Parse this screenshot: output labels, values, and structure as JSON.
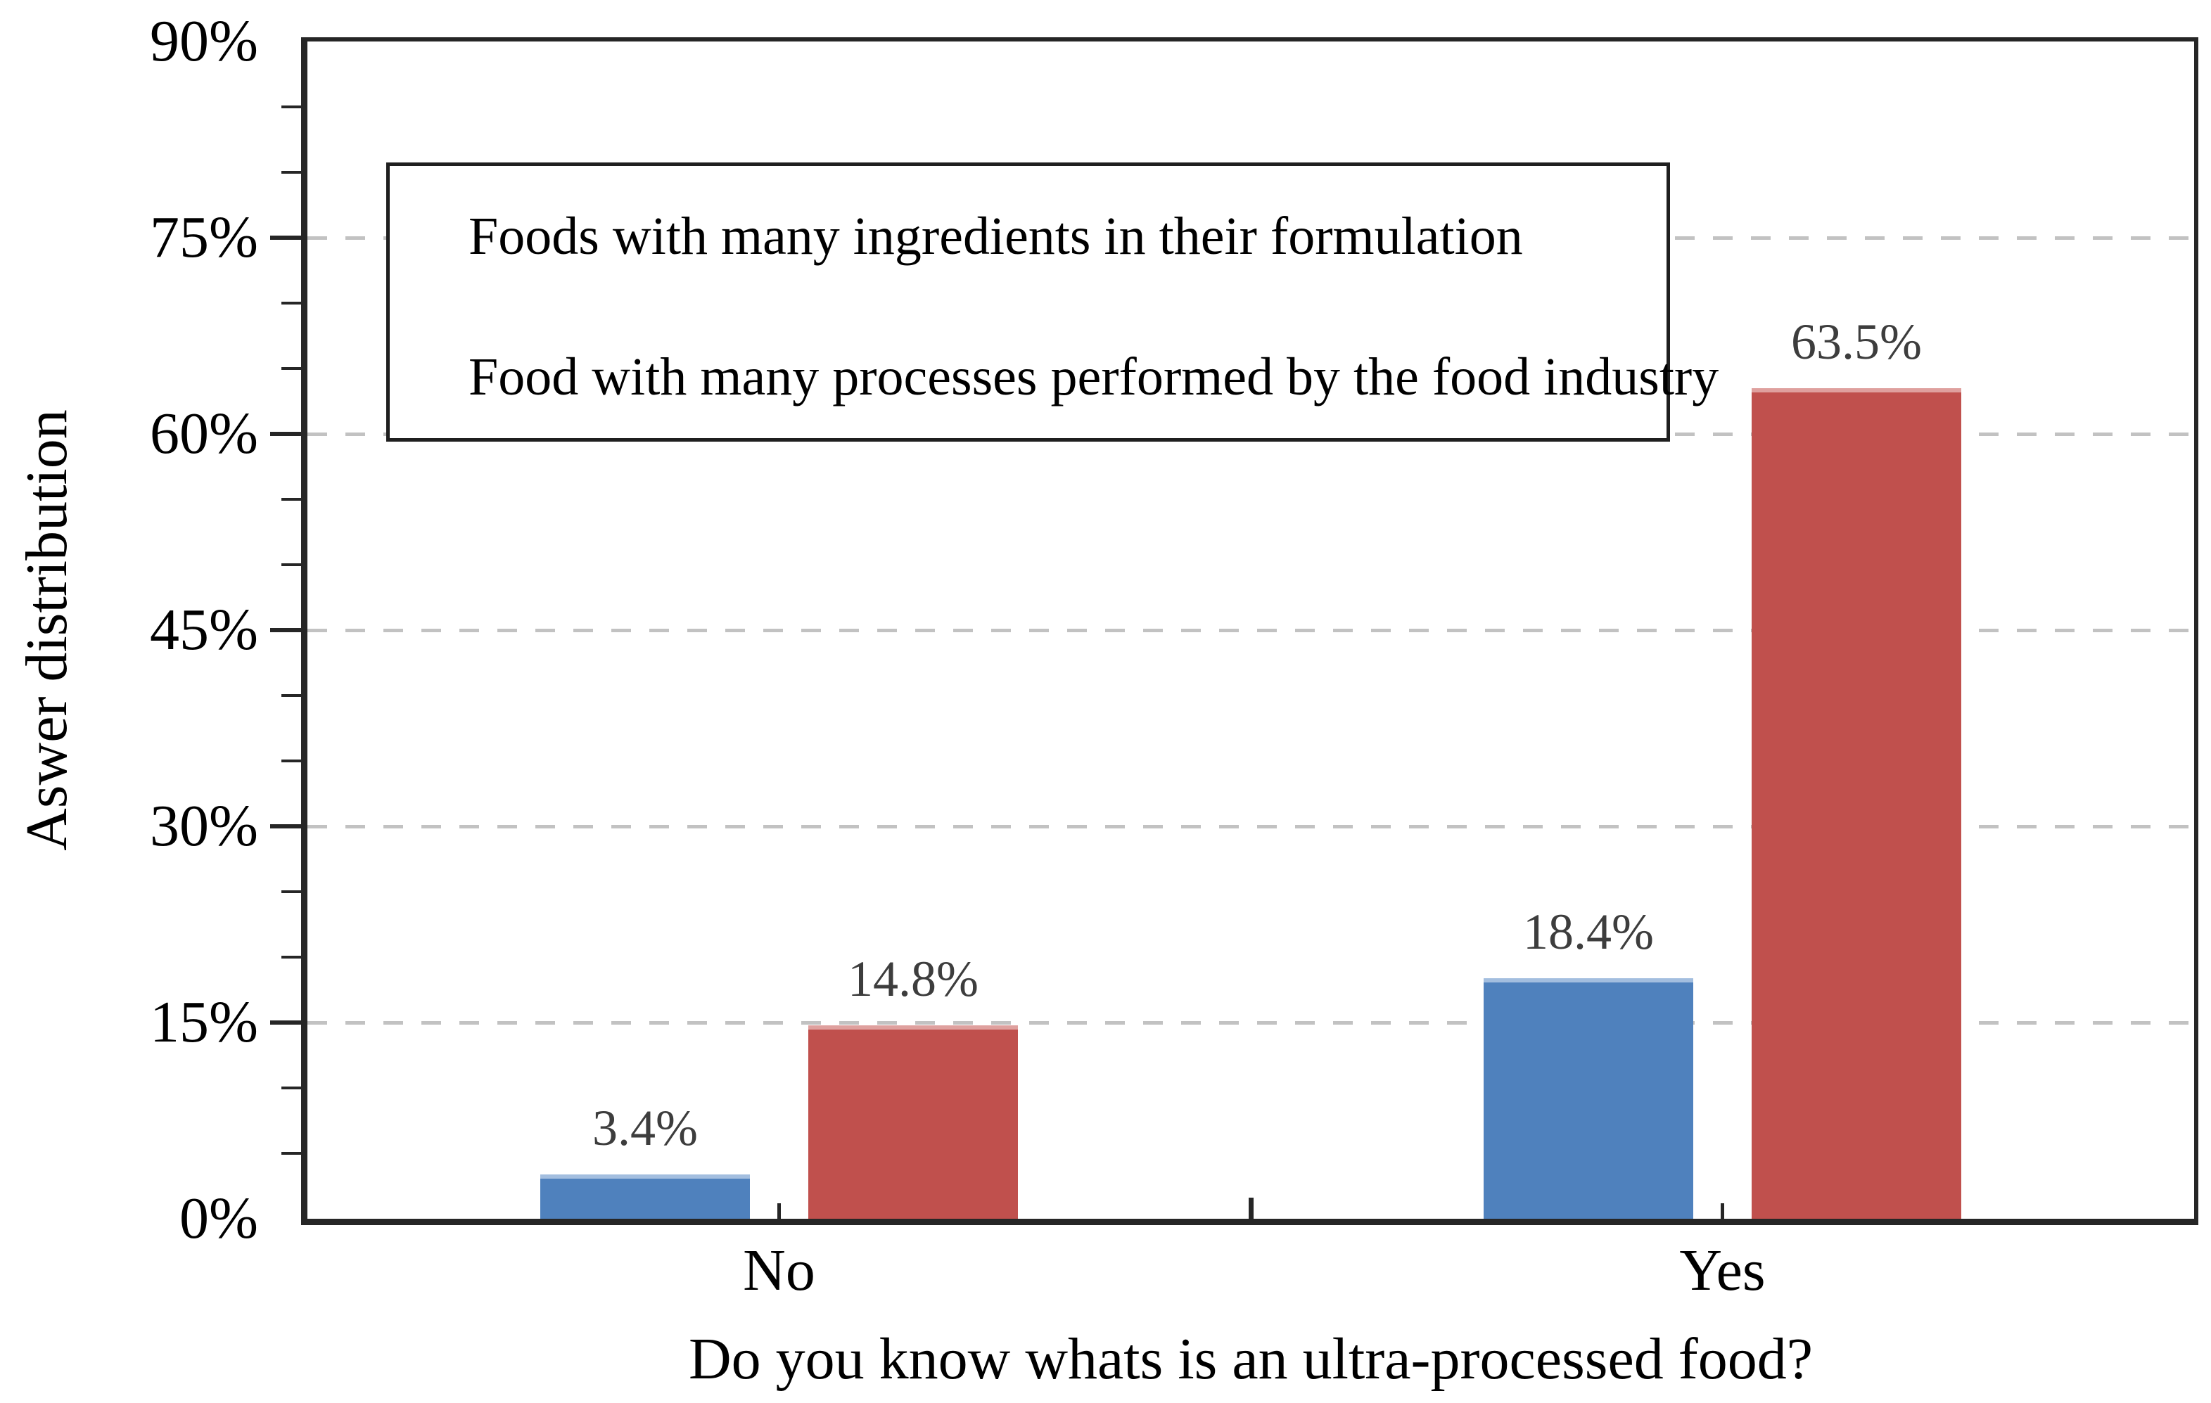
{
  "chart_data": {
    "type": "bar",
    "title": "",
    "xlabel": "Do you know whats is an ultra-processed food?",
    "ylabel": "Aswer distribution",
    "categories": [
      "No",
      "Yes"
    ],
    "series": [
      {
        "name": "Foods with many ingredients in their formulation",
        "color": "#4F81BD",
        "highlight": "#a3bedf",
        "values": [
          3.4,
          18.4
        ],
        "data_labels": [
          "3.4%",
          "18.4%"
        ]
      },
      {
        "name": "Food with many processes performed by the food industry",
        "color": "#C0504D",
        "highlight": "#dfa09e",
        "values": [
          14.8,
          63.5
        ],
        "data_labels": [
          "14.8%",
          "63.5%"
        ]
      }
    ],
    "ylim": [
      0,
      90
    ],
    "y_major_step": 15,
    "y_minor_step": 5,
    "y_tick_labels": [
      "0%",
      "15%",
      "30%",
      "45%",
      "60%",
      "75%",
      "90%"
    ],
    "grid": "horizontal dashed at major ticks",
    "gridline_color": "#c2c2c2",
    "axis_color": "#262626",
    "legend_position": "top-left-inside"
  }
}
